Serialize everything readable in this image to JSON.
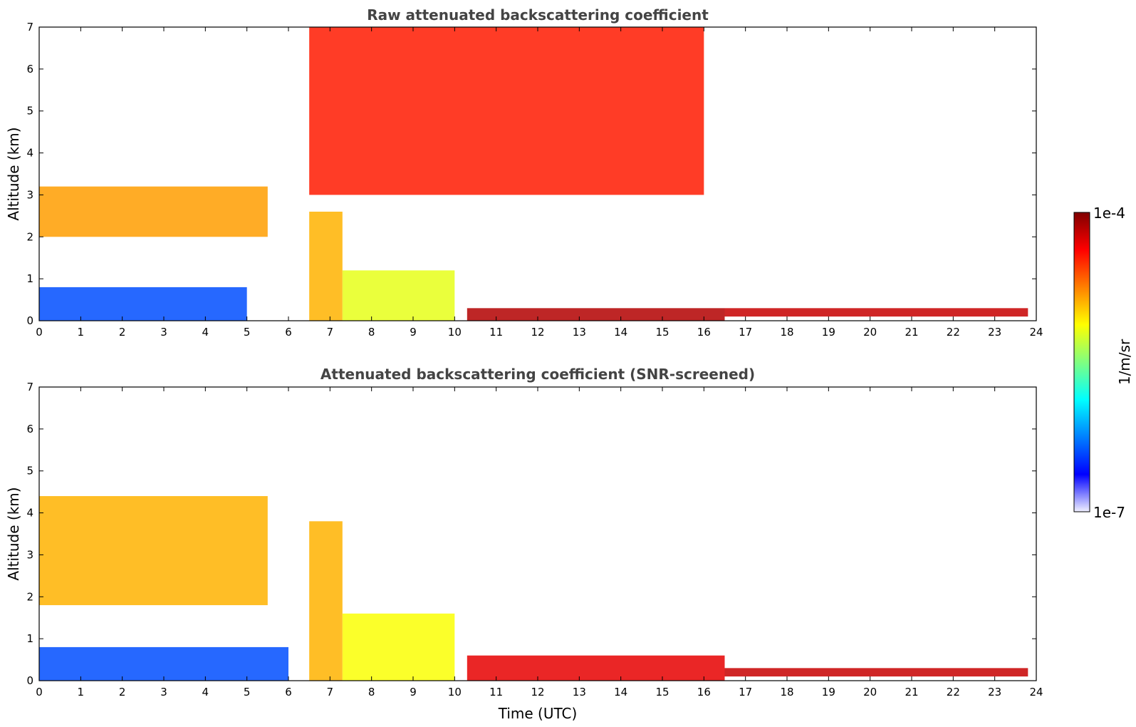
{
  "chart_data": [
    {
      "type": "heatmap",
      "title": "Raw attenuated backscattering coefficient",
      "xlabel": "",
      "ylabel": "Altitude (km)",
      "xlim": [
        0,
        24
      ],
      "ylim": [
        0,
        7
      ],
      "x_ticks": [
        "0",
        "1",
        "2",
        "3",
        "4",
        "5",
        "6",
        "7",
        "8",
        "9",
        "10",
        "11",
        "12",
        "13",
        "14",
        "15",
        "16",
        "17",
        "18",
        "19",
        "20",
        "21",
        "22",
        "23",
        "24"
      ],
      "y_ticks": [
        "0",
        "1",
        "2",
        "3",
        "4",
        "5",
        "6",
        "7"
      ],
      "features": [
        {
          "x": [
            0,
            5.5
          ],
          "y": [
            2.0,
            3.2
          ],
          "level": 0.72
        },
        {
          "x": [
            0,
            5.0
          ],
          "y": [
            0.0,
            0.8
          ],
          "level": 0.2
        },
        {
          "x": [
            6.5,
            7.3
          ],
          "y": [
            0.0,
            2.6
          ],
          "level": 0.7
        },
        {
          "x": [
            7.3,
            10.0
          ],
          "y": [
            0.0,
            1.2
          ],
          "level": 0.6
        },
        {
          "x": [
            10.3,
            16.5
          ],
          "y": [
            0.0,
            0.3
          ],
          "level": 0.95
        },
        {
          "x": [
            16.5,
            23.8
          ],
          "y": [
            0.1,
            0.3
          ],
          "level": 0.93
        },
        {
          "x": [
            6.5,
            16.0
          ],
          "y": [
            3.0,
            7.0
          ],
          "level": 0.85
        }
      ]
    },
    {
      "type": "heatmap",
      "title": "Attenuated backscattering coefficient (SNR-screened)",
      "xlabel": "Time (UTC)",
      "ylabel": "Altitude (km)",
      "xlim": [
        0,
        24
      ],
      "ylim": [
        0,
        7
      ],
      "x_ticks": [
        "0",
        "1",
        "2",
        "3",
        "4",
        "5",
        "6",
        "7",
        "8",
        "9",
        "10",
        "11",
        "12",
        "13",
        "14",
        "15",
        "16",
        "17",
        "18",
        "19",
        "20",
        "21",
        "22",
        "23",
        "24"
      ],
      "y_ticks": [
        "0",
        "1",
        "2",
        "3",
        "4",
        "5",
        "6",
        "7"
      ],
      "features": [
        {
          "x": [
            0,
            5.5
          ],
          "y": [
            1.8,
            4.4
          ],
          "level": 0.7
        },
        {
          "x": [
            0,
            6.0
          ],
          "y": [
            0.0,
            0.8
          ],
          "level": 0.2
        },
        {
          "x": [
            6.5,
            7.3
          ],
          "y": [
            0.0,
            3.8
          ],
          "level": 0.7
        },
        {
          "x": [
            7.3,
            10.0
          ],
          "y": [
            0.0,
            1.6
          ],
          "level": 0.62
        },
        {
          "x": [
            10.3,
            16.5
          ],
          "y": [
            0.0,
            0.6
          ],
          "level": 0.9
        },
        {
          "x": [
            16.5,
            23.8
          ],
          "y": [
            0.1,
            0.3
          ],
          "level": 0.93
        }
      ]
    }
  ],
  "colorbar": {
    "label": "1/m/sr",
    "max_label": "1e-4",
    "min_label": "1e-7",
    "colors": [
      "#800000",
      "#ff0000",
      "#ff8000",
      "#ffff00",
      "#80ff80",
      "#00ffff",
      "#0080ff",
      "#0000ff",
      "#f0f0ff"
    ]
  }
}
